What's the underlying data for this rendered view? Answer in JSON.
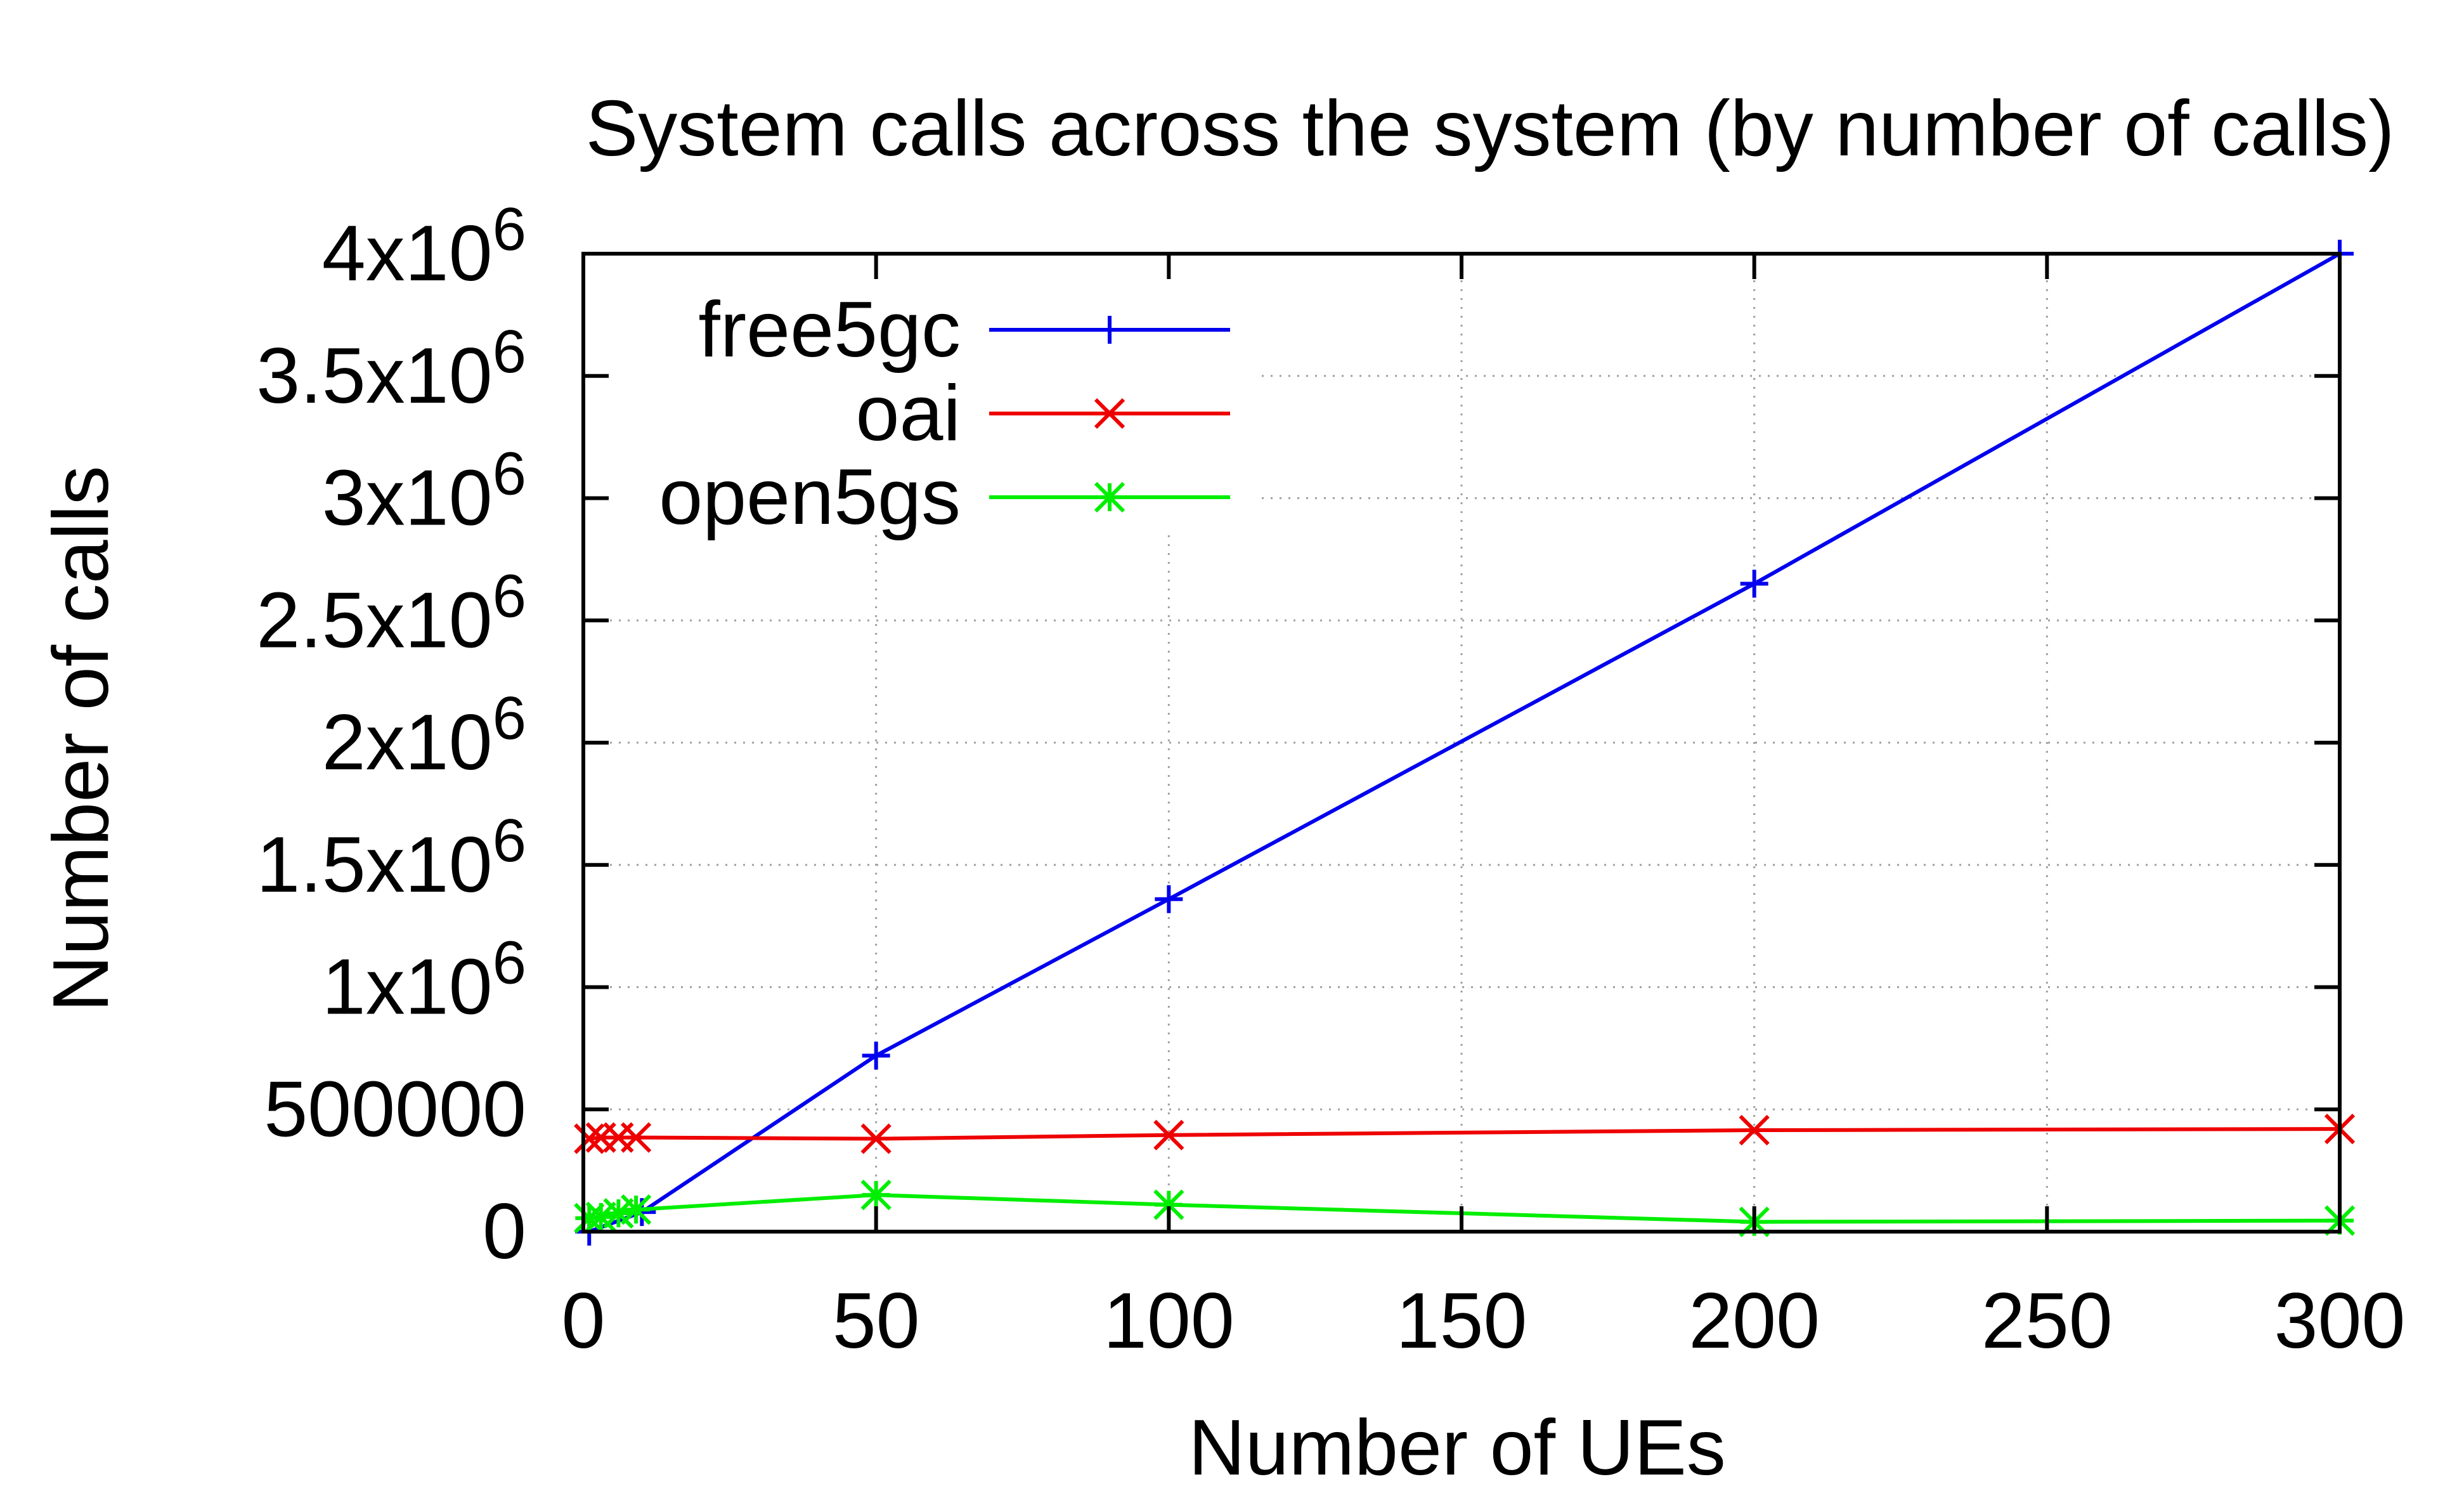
{
  "chart_data": {
    "type": "line",
    "title": "System calls across the system (by number of calls)",
    "xlabel": "Number of UEs",
    "ylabel": "Number of calls",
    "xlim": [
      0,
      300
    ],
    "ylim": [
      0,
      4000000
    ],
    "grid": true,
    "legend_position": "top-left",
    "x_ticks": [
      {
        "value": 0,
        "label": "0"
      },
      {
        "value": 50,
        "label": "50"
      },
      {
        "value": 100,
        "label": "100"
      },
      {
        "value": 150,
        "label": "150"
      },
      {
        "value": 200,
        "label": "200"
      },
      {
        "value": 250,
        "label": "250"
      },
      {
        "value": 300,
        "label": "300"
      }
    ],
    "y_ticks": [
      {
        "value": 0,
        "label": "0",
        "exp": ""
      },
      {
        "value": 500000,
        "label": "500000",
        "exp": ""
      },
      {
        "value": 1000000,
        "label": "1x10",
        "exp": "6"
      },
      {
        "value": 1500000,
        "label": "1.5x10",
        "exp": "6"
      },
      {
        "value": 2000000,
        "label": "2x10",
        "exp": "6"
      },
      {
        "value": 2500000,
        "label": "2.5x10",
        "exp": "6"
      },
      {
        "value": 3000000,
        "label": "3x10",
        "exp": "6"
      },
      {
        "value": 3500000,
        "label": "3.5x10",
        "exp": "6"
      },
      {
        "value": 4000000,
        "label": "4x10",
        "exp": "6"
      }
    ],
    "series": [
      {
        "name": "free5gc",
        "color": "#0000ee",
        "marker": "plus",
        "x": [
          1,
          10,
          50,
          100,
          200,
          300
        ],
        "y": [
          0,
          80000,
          720000,
          1360000,
          2650000,
          4000000
        ]
      },
      {
        "name": "oai",
        "color": "#ee0000",
        "marker": "cross",
        "x": [
          1,
          3,
          6,
          9,
          50,
          100,
          200,
          300
        ],
        "y": [
          380000,
          385000,
          385000,
          385000,
          380000,
          395000,
          415000,
          420000
        ]
      },
      {
        "name": "open5gs",
        "color": "#00ee00",
        "marker": "star",
        "x": [
          1,
          3,
          6,
          9,
          50,
          100,
          200,
          300
        ],
        "y": [
          55000,
          60000,
          75000,
          90000,
          150000,
          110000,
          40000,
          45000
        ]
      }
    ]
  }
}
